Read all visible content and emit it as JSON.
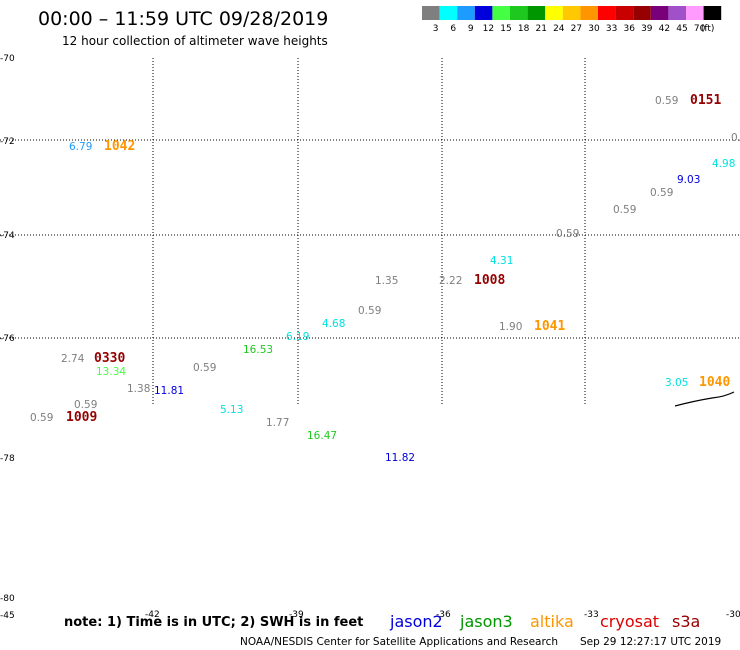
{
  "header": {
    "title": "00:00 – 11:59 UTC 09/28/2019",
    "subtitle": "12 hour collection of altimeter wave heights"
  },
  "colorbar": {
    "colors": [
      "#7f7f7f",
      "#00ffff",
      "#1e9bff",
      "#0000dc",
      "#44ff44",
      "#1ec81e",
      "#009600",
      "#ffff00",
      "#ffc800",
      "#ff9600",
      "#ff0000",
      "#c80000",
      "#960000",
      "#780078",
      "#a050c8",
      "#ff9bff",
      "#000000"
    ],
    "labels": [
      "3",
      "6",
      "9",
      "12",
      "15",
      "18",
      "21",
      "24",
      "27",
      "30",
      "33",
      "36",
      "39",
      "42",
      "45",
      "70",
      "(ft)"
    ]
  },
  "lat_labels": [
    {
      "text": "-70",
      "lat": -70
    },
    {
      "text": "-72",
      "lat": -72
    },
    {
      "text": "-74",
      "lat": -74
    },
    {
      "text": "-76",
      "lat": -76
    },
    {
      "text": "-78",
      "lat": -78
    },
    {
      "text": "-80",
      "lat": -80
    }
  ],
  "lon_labels": [
    "-45",
    "-42",
    "-39",
    "-36",
    "-33",
    "-30"
  ],
  "observations": [
    {
      "text": "0.59",
      "color": "#7f7f7f",
      "kind": "swh"
    },
    {
      "text": "0151",
      "color": "#960000",
      "kind": "time"
    },
    {
      "text": "0.",
      "color": "#7f7f7f",
      "kind": "swh"
    },
    {
      "text": "6.79",
      "color": "#1e9bff",
      "kind": "swh"
    },
    {
      "text": "1042",
      "color": "#ff9600",
      "kind": "time"
    },
    {
      "text": "4.98",
      "color": "#00e1e1",
      "kind": "swh"
    },
    {
      "text": "9.03",
      "color": "#0000dc",
      "kind": "swh"
    },
    {
      "text": "0.59",
      "color": "#7f7f7f",
      "kind": "swh"
    },
    {
      "text": "0.59",
      "color": "#7f7f7f",
      "kind": "swh"
    },
    {
      "text": "0.59",
      "color": "#7f7f7f",
      "kind": "swh"
    },
    {
      "text": "4.31",
      "color": "#00e1e1",
      "kind": "swh"
    },
    {
      "text": "1.35",
      "color": "#7f7f7f",
      "kind": "swh"
    },
    {
      "text": "2.22",
      "color": "#7f7f7f",
      "kind": "swh"
    },
    {
      "text": "1008",
      "color": "#960000",
      "kind": "time"
    },
    {
      "text": "0.59",
      "color": "#7f7f7f",
      "kind": "swh"
    },
    {
      "text": "4.68",
      "color": "#00e1e1",
      "kind": "swh"
    },
    {
      "text": "1.90",
      "color": "#7f7f7f",
      "kind": "swh"
    },
    {
      "text": "1041",
      "color": "#ff9600",
      "kind": "time"
    },
    {
      "text": "6.19",
      "color": "#00e1e1",
      "kind": "swh"
    },
    {
      "text": "16.53",
      "color": "#1ec81e",
      "kind": "swh"
    },
    {
      "text": "2.74",
      "color": "#7f7f7f",
      "kind": "swh"
    },
    {
      "text": "0330",
      "color": "#960000",
      "kind": "time"
    },
    {
      "text": "13.34",
      "color": "#44ff44",
      "kind": "swh"
    },
    {
      "text": "0.59",
      "color": "#7f7f7f",
      "kind": "swh"
    },
    {
      "text": "1.38",
      "color": "#7f7f7f",
      "kind": "swh"
    },
    {
      "text": "11.81",
      "color": "#0000dc",
      "kind": "swh"
    },
    {
      "text": "0.59",
      "color": "#7f7f7f",
      "kind": "swh"
    },
    {
      "text": "0.59",
      "color": "#7f7f7f",
      "kind": "swh"
    },
    {
      "text": "1009",
      "color": "#960000",
      "kind": "time"
    },
    {
      "text": "5.13",
      "color": "#00e1e1",
      "kind": "swh"
    },
    {
      "text": "1.77",
      "color": "#7f7f7f",
      "kind": "swh"
    },
    {
      "text": "16.47",
      "color": "#1ec81e",
      "kind": "swh"
    },
    {
      "text": "11.82",
      "color": "#0000dc",
      "kind": "swh"
    },
    {
      "text": "3.05",
      "color": "#00e1e1",
      "kind": "swh"
    },
    {
      "text": "1040",
      "color": "#ff9600",
      "kind": "time"
    }
  ],
  "footer": {
    "note": "note: 1) Time is in UTC; 2) SWH is in feet",
    "credit": "NOAA/NESDIS Center for Satellite Applications and Research",
    "timestamp": "Sep 29 12:27:17 UTC 2019"
  },
  "satellites": [
    {
      "name": "jason2",
      "color": "#0000dc"
    },
    {
      "name": "jason3",
      "color": "#009600"
    },
    {
      "name": "altika",
      "color": "#ff9600"
    },
    {
      "name": "cryosat",
      "color": "#dc0000"
    },
    {
      "name": "s3a",
      "color": "#960000"
    }
  ]
}
